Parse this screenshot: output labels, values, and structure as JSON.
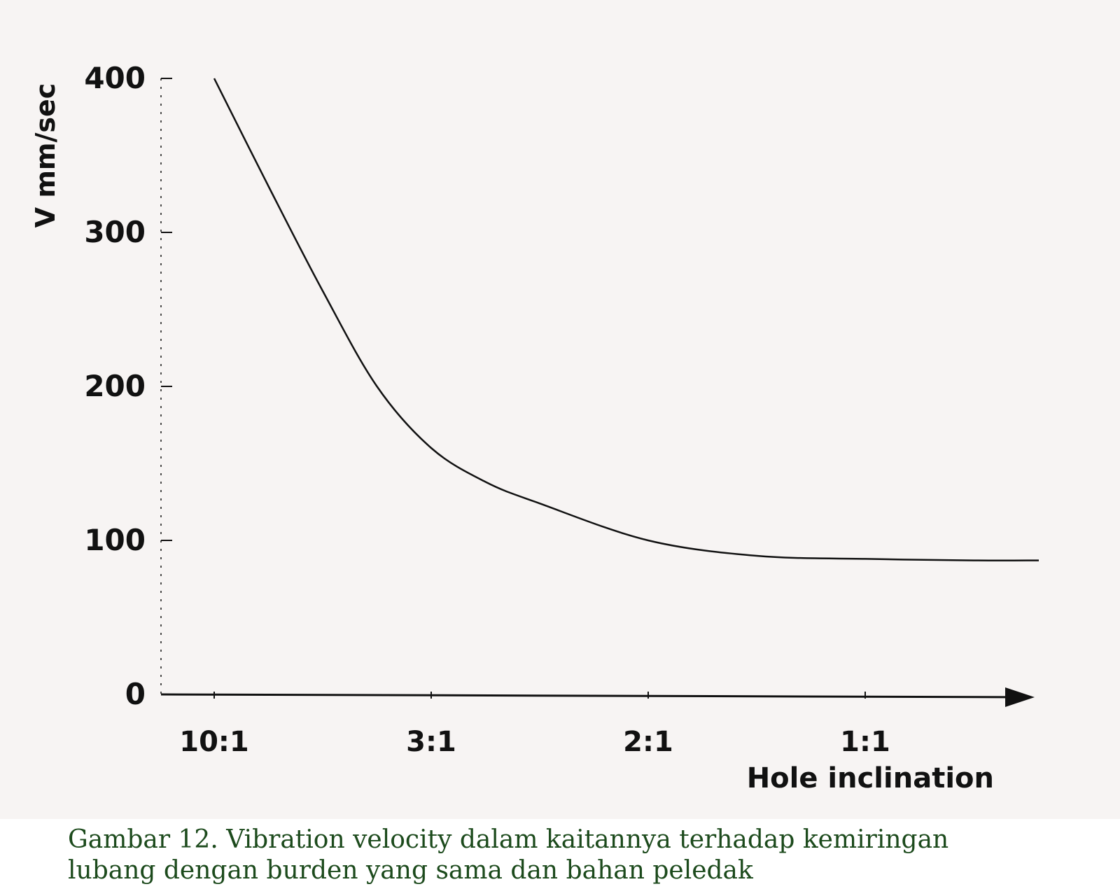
{
  "chart_data": {
    "type": "line",
    "title": "",
    "xlabel": "Hole inclination",
    "ylabel": "V mm/sec",
    "x_tick_labels": [
      "10:1",
      "3:1",
      "2:1",
      "1:1"
    ],
    "y_ticks": [
      0,
      100,
      200,
      300,
      400
    ],
    "ylim": [
      0,
      400
    ],
    "xlim": [
      0,
      3.8
    ],
    "grid": false,
    "legend": "none",
    "series": [
      {
        "x": [
          0,
          0.25,
          0.5,
          0.75,
          1.0,
          1.25,
          1.5,
          2.0,
          2.5,
          3.0,
          3.5,
          3.8
        ],
        "y": [
          400,
          330,
          262,
          200,
          160,
          138,
          124,
          100,
          90,
          88,
          87,
          87
        ]
      }
    ],
    "colors": {
      "line": "#111111",
      "axis": "#111111",
      "background": "#f7f4f3"
    }
  },
  "caption": {
    "line1": "Gambar 12. Vibration velocity dalam kaitannya terhadap kemiringan",
    "line2": "lubang dengan burden yang sama dan bahan peledak",
    "color": "#1c4a1c"
  }
}
